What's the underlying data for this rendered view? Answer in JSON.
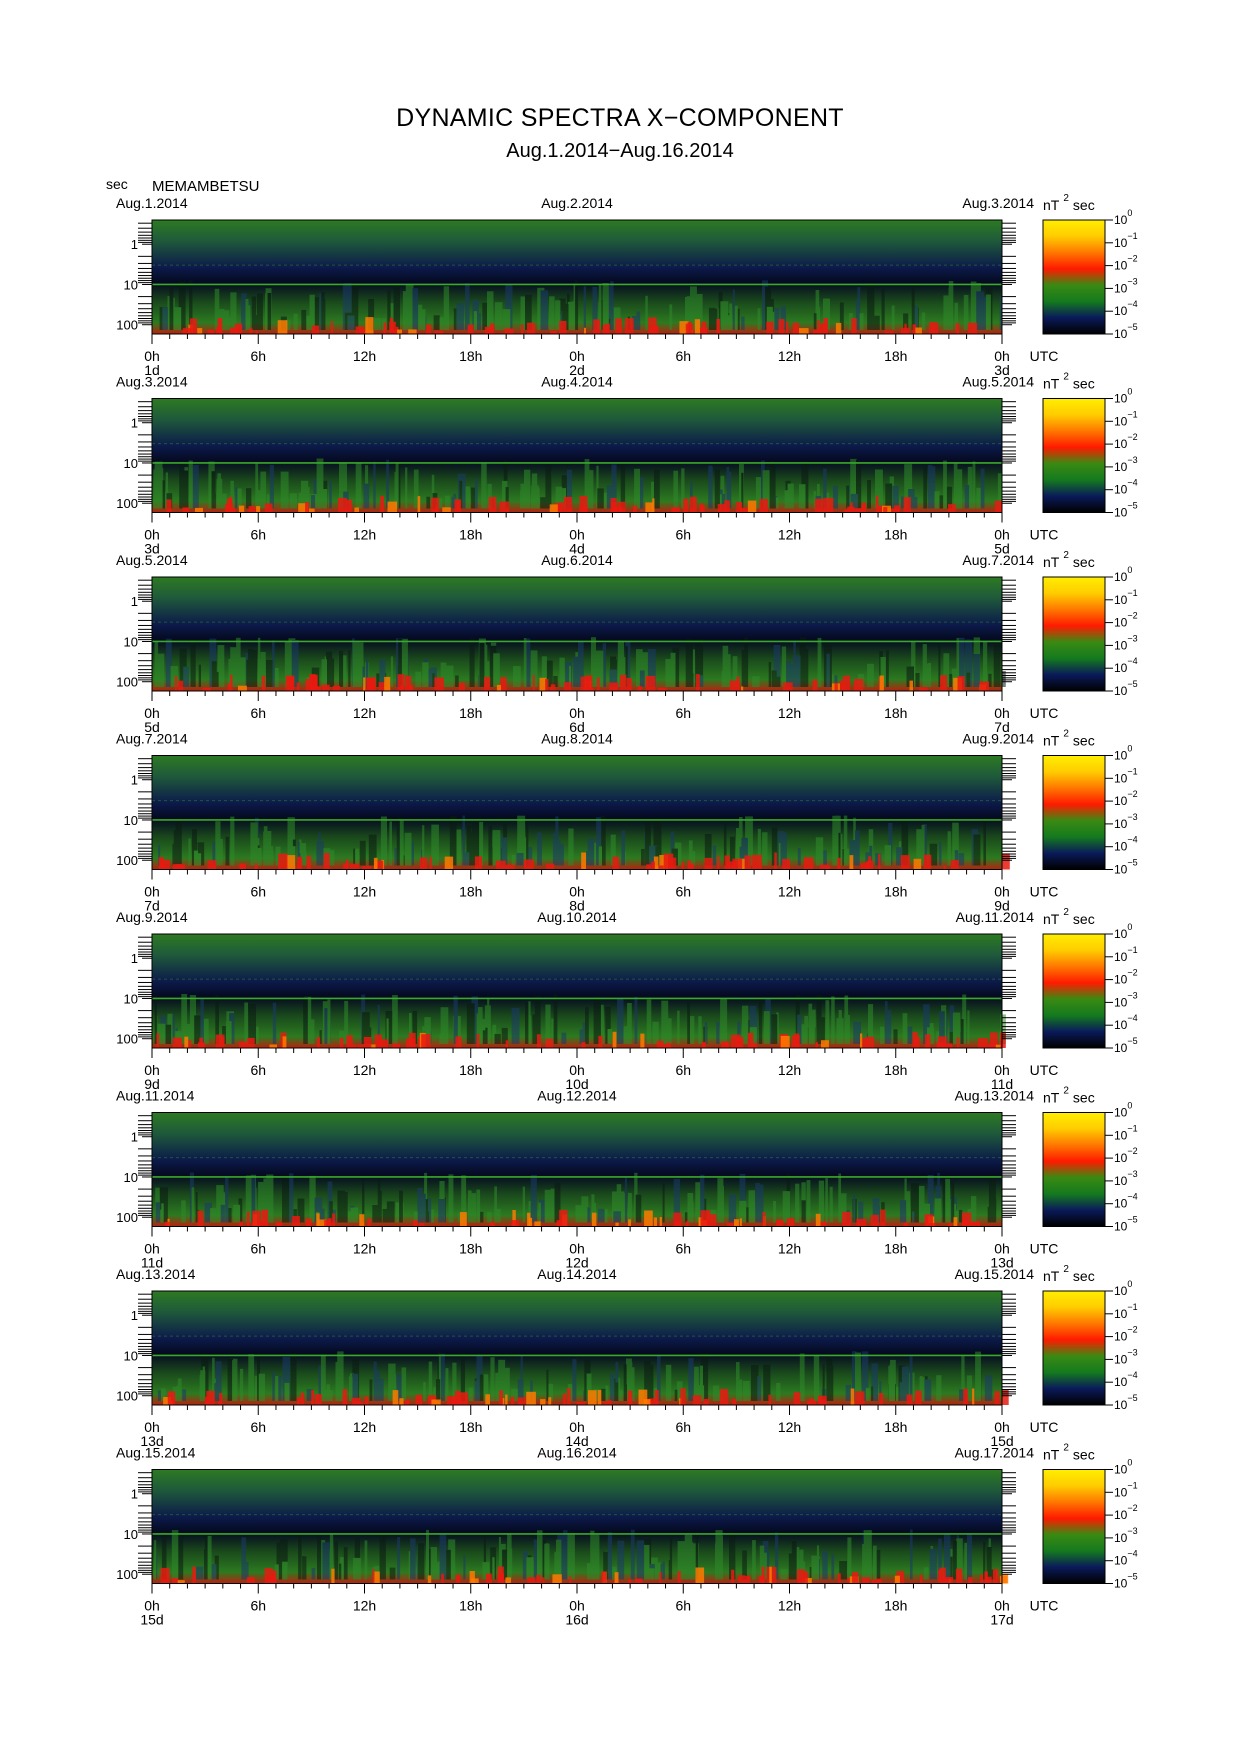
{
  "title": "DYNAMIC SPECTRA X−COMPONENT",
  "subtitle": "Aug.1.2014−Aug.16.2014",
  "station": "MEMAMBETSU",
  "y_unit_label": "sec",
  "colors": {
    "colorbar_stops": [
      "#000000",
      "#0a1a5a",
      "#147a1e",
      "#3a8a12",
      "#ff1a00",
      "#ff7700",
      "#ffcc00",
      "#ffee00"
    ],
    "background_low": "#0a0f2a",
    "band_high": "#2e8a2a",
    "noise_red": "#e81a10"
  },
  "chart_data": {
    "type": "heatmap",
    "y_axis": {
      "scale": "log",
      "ticks": [
        "1",
        "10",
        "100"
      ],
      "unit": "sec"
    },
    "x_axis": {
      "ticks": [
        "0h",
        "6h",
        "12h",
        "18h",
        "0h",
        "6h",
        "12h",
        "18h",
        "0h"
      ],
      "unit": "UTC"
    },
    "colorbar": {
      "unit": "nT",
      "unit_superscript": "2",
      "unit_suffix": "sec",
      "ticks": [
        {
          "base": "10",
          "exp": "0"
        },
        {
          "base": "10",
          "exp": "−1"
        },
        {
          "base": "10",
          "exp": "−2"
        },
        {
          "base": "10",
          "exp": "−3"
        },
        {
          "base": "10",
          "exp": "−4"
        },
        {
          "base": "10",
          "exp": "−5"
        }
      ]
    },
    "panels": [
      {
        "date_left": "Aug.1.2014",
        "date_mid": "Aug.2.2014",
        "date_right": "Aug.3.2014",
        "day_labels": [
          "1d",
          "2d",
          "3d"
        ]
      },
      {
        "date_left": "Aug.3.2014",
        "date_mid": "Aug.4.2014",
        "date_right": "Aug.5.2014",
        "day_labels": [
          "3d",
          "4d",
          "5d"
        ]
      },
      {
        "date_left": "Aug.5.2014",
        "date_mid": "Aug.6.2014",
        "date_right": "Aug.7.2014",
        "day_labels": [
          "5d",
          "6d",
          "7d"
        ]
      },
      {
        "date_left": "Aug.7.2014",
        "date_mid": "Aug.8.2014",
        "date_right": "Aug.9.2014",
        "day_labels": [
          "7d",
          "8d",
          "9d"
        ]
      },
      {
        "date_left": "Aug.9.2014",
        "date_mid": "Aug.10.2014",
        "date_right": "Aug.11.2014",
        "day_labels": [
          "9d",
          "10d",
          "11d"
        ]
      },
      {
        "date_left": "Aug.11.2014",
        "date_mid": "Aug.12.2014",
        "date_right": "Aug.13.2014",
        "day_labels": [
          "11d",
          "12d",
          "13d"
        ]
      },
      {
        "date_left": "Aug.13.2014",
        "date_mid": "Aug.14.2014",
        "date_right": "Aug.15.2014",
        "day_labels": [
          "13d",
          "14d",
          "15d"
        ]
      },
      {
        "date_left": "Aug.15.2014",
        "date_mid": "Aug.16.2014",
        "date_right": "Aug.17.2014",
        "day_labels": [
          "15d",
          "16d",
          "17d"
        ]
      }
    ]
  }
}
